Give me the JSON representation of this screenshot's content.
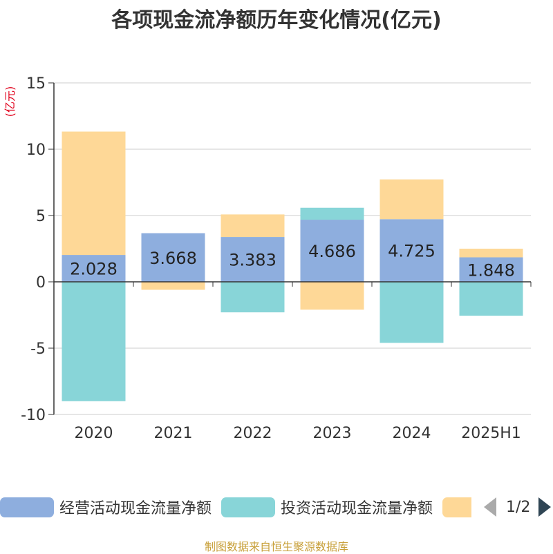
{
  "title": "各项现金流净额历年变化情况(亿元)",
  "source": "制图数据来自恒生聚源数据库",
  "colors": {
    "operating": "#8eaede",
    "investing": "#88d5d8",
    "financing": "#fed897",
    "axis_unit": "#e0001b",
    "grid": "#cccccc",
    "axis": "#333333",
    "text": "#333333"
  },
  "legend_pager": {
    "text": "1/2"
  },
  "chart_data": {
    "type": "bar",
    "stacked": true,
    "title": "各项现金流净额历年变化情况(亿元)",
    "ylabel": "(亿元)",
    "ylim": [
      -10,
      15
    ],
    "yticks": [
      15,
      10,
      5,
      0,
      -5,
      -10
    ],
    "grid": true,
    "legend_position": "bottom",
    "categories": [
      "2020",
      "2021",
      "2022",
      "2023",
      "2024",
      "2025H1"
    ],
    "series": [
      {
        "name": "经营活动现金流量净额",
        "values": [
          2.028,
          3.668,
          3.383,
          4.686,
          4.725,
          1.848
        ],
        "labels": [
          "2.028",
          "3.668",
          "3.383",
          "4.686",
          "4.725",
          "1.848"
        ]
      },
      {
        "name": "投资活动现金流量净额",
        "values": [
          -9.0,
          0.0,
          -2.3,
          0.9,
          -4.6,
          -2.55
        ]
      },
      {
        "values": [
          9.3,
          -0.6,
          1.7,
          -2.1,
          3.0,
          0.65
        ]
      }
    ]
  }
}
